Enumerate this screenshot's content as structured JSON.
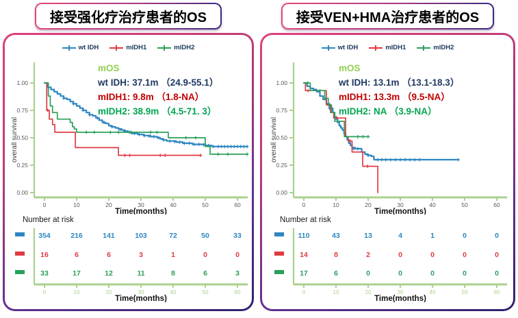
{
  "colors": {
    "blue": "#2e86c1",
    "red": "#e03a42",
    "green": "#2aa05a",
    "axis_green": "#a9d18e",
    "mos_green": "#92d050",
    "navy": "#1f3864",
    "annot_red": "#c00000",
    "annot_green": "#00a651",
    "tick_gray": "#595959"
  },
  "panels": [
    {
      "title": "接受强化疗治疗患者的OS",
      "risk_label": "Number at risk",
      "legend": [
        {
          "label": "wt IDH",
          "color": "#2e86c1"
        },
        {
          "label": "mIDH1",
          "color": "#e03a42"
        },
        {
          "label": "mIDH2",
          "color": "#2aa05a"
        }
      ],
      "annotation": {
        "header": "mOS",
        "lines": [
          {
            "text": "wt IDH: 37.1m （24.9-55.1）",
            "color": "#1f3864"
          },
          {
            "text": "mIDH1: 9.8m （1.8-NA）",
            "color": "#c00000"
          },
          {
            "text": "mIDH2: 38.9m （4.5-71. 3）",
            "color": "#00a651"
          }
        ]
      }
    },
    {
      "title": "接受VEN+HMA治疗患者的OS",
      "risk_label": "Number at risk",
      "legend": [
        {
          "label": "wt IDH",
          "color": "#2e86c1"
        },
        {
          "label": "mIDH1",
          "color": "#e03a42"
        },
        {
          "label": "mIDH2",
          "color": "#2aa05a"
        }
      ],
      "annotation": {
        "header": "mOS",
        "lines": [
          {
            "text": "wt IDH: 13.1m （13.1-18.3）",
            "color": "#1f3864"
          },
          {
            "text": "mIDH1: 13.3m （9.5-NA）",
            "color": "#c00000"
          },
          {
            "text": "mIDH2: NA （3.9-NA）",
            "color": "#00a651"
          }
        ]
      }
    }
  ],
  "chart_data": [
    {
      "type": "line",
      "title": "接受强化疗治疗患者的OS",
      "xlabel": "Time(months)",
      "ylabel": "overall survival",
      "xlim": [
        0,
        63
      ],
      "ylim": [
        0,
        1.0
      ],
      "xticks": [
        0,
        10,
        20,
        30,
        40,
        50,
        60
      ],
      "yticks": [
        0.0,
        0.25,
        0.5,
        0.75,
        1.0
      ],
      "grid": false,
      "legend_position": "top",
      "series": [
        {
          "name": "wt IDH",
          "color": "#2e86c1",
          "median": "37.1m (24.9-55.1)",
          "steps": [
            [
              0,
              1.0
            ],
            [
              1,
              0.96
            ],
            [
              2,
              0.94
            ],
            [
              3,
              0.92
            ],
            [
              4,
              0.9
            ],
            [
              5,
              0.88
            ],
            [
              6,
              0.86
            ],
            [
              7,
              0.85
            ],
            [
              8,
              0.83
            ],
            [
              9,
              0.81
            ],
            [
              10,
              0.79
            ],
            [
              11,
              0.77
            ],
            [
              12,
              0.75
            ],
            [
              13,
              0.73
            ],
            [
              14,
              0.71
            ],
            [
              15,
              0.7
            ],
            [
              16,
              0.68
            ],
            [
              17,
              0.66
            ],
            [
              18,
              0.64
            ],
            [
              19,
              0.63
            ],
            [
              20,
              0.61
            ],
            [
              21,
              0.6
            ],
            [
              22,
              0.59
            ],
            [
              23,
              0.58
            ],
            [
              24,
              0.57
            ],
            [
              25,
              0.56
            ],
            [
              26,
              0.55
            ],
            [
              27,
              0.54
            ],
            [
              29,
              0.53
            ],
            [
              31,
              0.52
            ],
            [
              33,
              0.51
            ],
            [
              35,
              0.5
            ],
            [
              36,
              0.49
            ],
            [
              37,
              0.48
            ],
            [
              38,
              0.47
            ],
            [
              41,
              0.46
            ],
            [
              43,
              0.45
            ],
            [
              46,
              0.44
            ],
            [
              50,
              0.43
            ],
            [
              52,
              0.42
            ],
            [
              63,
              0.42
            ]
          ],
          "censors": [
            [
              6,
              0.86
            ],
            [
              9,
              0.81
            ],
            [
              12,
              0.75
            ],
            [
              14,
              0.71
            ],
            [
              16.5,
              0.68
            ],
            [
              18.5,
              0.64
            ],
            [
              21,
              0.6
            ],
            [
              23.5,
              0.575
            ],
            [
              25,
              0.56
            ],
            [
              26.5,
              0.55
            ],
            [
              28,
              0.54
            ],
            [
              29.5,
              0.53
            ],
            [
              31,
              0.52
            ],
            [
              32.5,
              0.515
            ],
            [
              34,
              0.51
            ],
            [
              35.5,
              0.5
            ],
            [
              37,
              0.48
            ],
            [
              39,
              0.47
            ],
            [
              40.5,
              0.465
            ],
            [
              42,
              0.46
            ],
            [
              43.5,
              0.45
            ],
            [
              45,
              0.45
            ],
            [
              46.5,
              0.44
            ],
            [
              48,
              0.44
            ],
            [
              49.5,
              0.435
            ],
            [
              51,
              0.43
            ],
            [
              52.5,
              0.42
            ],
            [
              54,
              0.42
            ],
            [
              55,
              0.42
            ],
            [
              56,
              0.42
            ],
            [
              57,
              0.42
            ],
            [
              58,
              0.42
            ],
            [
              59,
              0.42
            ],
            [
              60,
              0.42
            ],
            [
              61,
              0.42
            ],
            [
              62,
              0.42
            ],
            [
              63,
              0.42
            ]
          ]
        },
        {
          "name": "mIDH1",
          "color": "#e03a42",
          "median": "9.8m (1.8-NA)",
          "steps": [
            [
              0,
              1.0
            ],
            [
              0.7,
              0.75
            ],
            [
              1.5,
              0.67
            ],
            [
              2.5,
              0.62
            ],
            [
              3.2,
              0.55
            ],
            [
              9.6,
              0.41
            ],
            [
              23,
              0.34
            ],
            [
              48.5,
              0.34
            ]
          ],
          "censors": [
            [
              1,
              0.75
            ],
            [
              25,
              0.34
            ],
            [
              26.5,
              0.34
            ],
            [
              36,
              0.34
            ],
            [
              37.5,
              0.34
            ],
            [
              48.5,
              0.34
            ]
          ]
        },
        {
          "name": "mIDH2",
          "color": "#2aa05a",
          "median": "38.9m (4.5-71.3)",
          "steps": [
            [
              0,
              1.0
            ],
            [
              1.2,
              0.88
            ],
            [
              1.8,
              0.79
            ],
            [
              2.5,
              0.73
            ],
            [
              4,
              0.67
            ],
            [
              8,
              0.64
            ],
            [
              8.7,
              0.6
            ],
            [
              9.3,
              0.58
            ],
            [
              10,
              0.55
            ],
            [
              38.5,
              0.5
            ],
            [
              50,
              0.42
            ],
            [
              51.5,
              0.35
            ],
            [
              63,
              0.35
            ]
          ],
          "censors": [
            [
              13,
              0.55
            ],
            [
              15.5,
              0.55
            ],
            [
              20.5,
              0.55
            ],
            [
              23,
              0.55
            ],
            [
              27,
              0.55
            ],
            [
              33,
              0.55
            ],
            [
              35,
              0.55
            ],
            [
              44,
              0.5
            ],
            [
              47,
              0.5
            ],
            [
              54,
              0.35
            ],
            [
              57,
              0.35
            ],
            [
              63,
              0.35
            ]
          ]
        }
      ],
      "number_at_risk": {
        "times": [
          0,
          10,
          20,
          30,
          40,
          50,
          60
        ],
        "rows": [
          {
            "name": "wt IDH",
            "color": "#2e86c1",
            "values": [
              354,
              216,
              141,
              103,
              72,
              50,
              33
            ]
          },
          {
            "name": "mIDH1",
            "color": "#e03a42",
            "values": [
              16,
              6,
              6,
              3,
              1,
              0,
              0
            ]
          },
          {
            "name": "mIDH2",
            "color": "#2aa05a",
            "values": [
              33,
              17,
              12,
              11,
              8,
              6,
              3
            ]
          }
        ],
        "xlabel": "Time(months)"
      }
    },
    {
      "type": "line",
      "title": "接受VEN+HMA治疗患者的OS",
      "xlabel": "Time(months)",
      "ylabel": "overall survival",
      "xlim": [
        0,
        63
      ],
      "ylim": [
        0,
        1.0
      ],
      "xticks": [
        0,
        10,
        20,
        30,
        40,
        50,
        60
      ],
      "yticks": [
        0.0,
        0.25,
        0.5,
        0.75,
        1.0
      ],
      "grid": false,
      "legend_position": "top",
      "series": [
        {
          "name": "wt IDH",
          "color": "#2e86c1",
          "median": "13.1m (13.1-18.3)",
          "steps": [
            [
              0,
              1.0
            ],
            [
              1,
              0.97
            ],
            [
              2,
              0.95
            ],
            [
              3,
              0.94
            ],
            [
              4,
              0.92
            ],
            [
              5,
              0.88
            ],
            [
              6,
              0.85
            ],
            [
              7,
              0.81
            ],
            [
              8,
              0.77
            ],
            [
              9,
              0.73
            ],
            [
              9.6,
              0.69
            ],
            [
              10,
              0.67
            ],
            [
              10.5,
              0.64
            ],
            [
              11,
              0.61
            ],
            [
              11.5,
              0.59
            ],
            [
              12,
              0.57
            ],
            [
              12.5,
              0.54
            ],
            [
              13,
              0.51
            ],
            [
              13.5,
              0.48
            ],
            [
              14,
              0.45
            ],
            [
              14.5,
              0.43
            ],
            [
              15,
              0.41
            ],
            [
              16,
              0.4
            ],
            [
              18,
              0.37
            ],
            [
              19,
              0.35
            ],
            [
              20,
              0.34
            ],
            [
              21,
              0.33
            ],
            [
              21.8,
              0.3
            ],
            [
              48,
              0.3
            ]
          ],
          "censors": [
            [
              8,
              0.77
            ],
            [
              15.5,
              0.4
            ],
            [
              16.8,
              0.4
            ],
            [
              20,
              0.34
            ],
            [
              23,
              0.3
            ],
            [
              24.2,
              0.3
            ],
            [
              25.5,
              0.3
            ],
            [
              27,
              0.3
            ],
            [
              28.5,
              0.3
            ],
            [
              30,
              0.3
            ],
            [
              31.5,
              0.3
            ],
            [
              33,
              0.3
            ],
            [
              34.5,
              0.3
            ],
            [
              36,
              0.3
            ],
            [
              48,
              0.3
            ]
          ]
        },
        {
          "name": "mIDH1",
          "color": "#e03a42",
          "median": "13.3m (9.5-NA)",
          "steps": [
            [
              0,
              1.0
            ],
            [
              0.5,
              0.93
            ],
            [
              7,
              0.8
            ],
            [
              8.3,
              0.73
            ],
            [
              9.3,
              0.68
            ],
            [
              13,
              0.51
            ],
            [
              13.8,
              0.47
            ],
            [
              15,
              0.37
            ],
            [
              18.3,
              0.24
            ],
            [
              23,
              0.0
            ]
          ],
          "censors": [
            [
              1.3,
              0.93
            ],
            [
              7.7,
              0.8
            ],
            [
              10.3,
              0.68
            ],
            [
              14.4,
              0.47
            ],
            [
              19.8,
              0.24
            ]
          ]
        },
        {
          "name": "mIDH2",
          "color": "#2aa05a",
          "median": "NA (3.9-NA)",
          "steps": [
            [
              0,
              1.0
            ],
            [
              2,
              0.93
            ],
            [
              6.5,
              0.86
            ],
            [
              7.6,
              0.8
            ],
            [
              8.6,
              0.73
            ],
            [
              9.6,
              0.65
            ],
            [
              12.6,
              0.51
            ],
            [
              20,
              0.51
            ]
          ],
          "censors": [
            [
              1.2,
              1.0
            ],
            [
              5,
              0.93
            ],
            [
              16.8,
              0.51
            ],
            [
              18.4,
              0.51
            ],
            [
              20,
              0.51
            ]
          ]
        }
      ],
      "number_at_risk": {
        "times": [
          0,
          10,
          20,
          30,
          40,
          50,
          60
        ],
        "rows": [
          {
            "name": "wt IDH",
            "color": "#2e86c1",
            "values": [
              110,
              43,
              13,
              4,
              1,
              0,
              0
            ]
          },
          {
            "name": "mIDH1",
            "color": "#e03a42",
            "values": [
              14,
              8,
              2,
              0,
              0,
              0,
              0
            ]
          },
          {
            "name": "mIDH2",
            "color": "#2aa05a",
            "values": [
              17,
              6,
              0,
              0,
              0,
              0,
              0
            ]
          }
        ],
        "xlabel": "Time(months)"
      }
    }
  ]
}
